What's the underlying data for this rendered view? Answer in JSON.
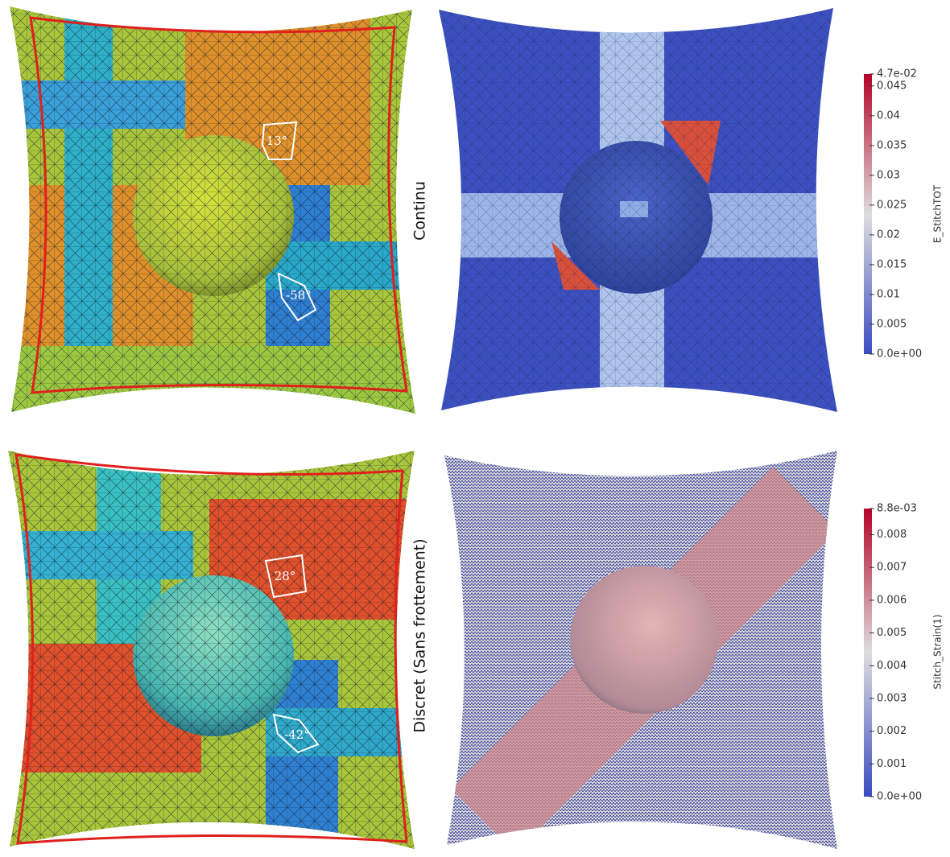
{
  "panels": [
    {
      "row_label": "Continu",
      "angles": [
        "13°",
        "-58°"
      ],
      "colorbar": {
        "title": "E_StitchTOT",
        "ticks": [
          {
            "value": 0.047,
            "label": "4.7e-02"
          },
          0.045,
          0.04,
          0.035,
          0.03,
          0.025,
          0.02,
          0.015,
          0.01,
          0.005,
          {
            "value": 0,
            "label": "0.0e+00"
          }
        ]
      }
    },
    {
      "row_label": "Discret (Sans frottement)",
      "angles": [
        "28°",
        "-42°"
      ],
      "colorbar": {
        "title": "Stitch_Strain(1)",
        "ticks": [
          {
            "value": 0.0088,
            "label": "8.8e-03"
          },
          0.008,
          0.007,
          0.006,
          0.005,
          0.004,
          0.003,
          0.002,
          0.001,
          {
            "value": 0,
            "label": "0.0e+00"
          }
        ]
      }
    }
  ]
}
